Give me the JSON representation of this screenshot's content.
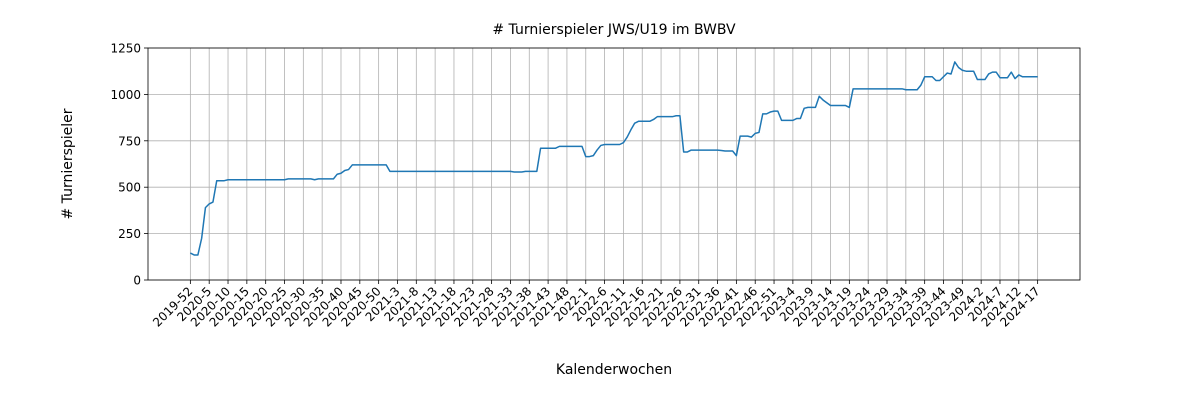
{
  "chart_data": {
    "type": "line",
    "title": "# Turnierspieler JWS/U19 im BWBV",
    "x_label": "Kalenderwochen",
    "y_label": "# Turnierspieler",
    "color": "#1f77b4",
    "grid": true,
    "ylim": [
      0,
      1250
    ],
    "yticks": [
      0,
      250,
      500,
      750,
      1000,
      1250
    ],
    "categories": [
      "2019-52",
      null,
      null,
      null,
      null,
      "2020-5",
      null,
      null,
      null,
      null,
      "2020-10",
      null,
      null,
      null,
      null,
      "2020-15",
      null,
      null,
      null,
      null,
      "2020-20",
      null,
      null,
      null,
      null,
      "2020-25",
      null,
      null,
      null,
      null,
      "2020-30",
      null,
      null,
      null,
      null,
      "2020-35",
      null,
      null,
      null,
      null,
      "2020-40",
      null,
      null,
      null,
      null,
      "2020-45",
      null,
      null,
      null,
      null,
      "2020-50",
      null,
      null,
      null,
      null,
      "2021-3",
      null,
      null,
      null,
      null,
      "2021-8",
      null,
      null,
      null,
      null,
      "2021-13",
      null,
      null,
      null,
      null,
      "2021-18",
      null,
      null,
      null,
      null,
      "2021-23",
      null,
      null,
      null,
      null,
      "2021-28",
      null,
      null,
      null,
      null,
      "2021-33",
      null,
      null,
      null,
      null,
      "2021-38",
      null,
      null,
      null,
      null,
      "2021-43",
      null,
      null,
      null,
      null,
      "2021-48",
      null,
      null,
      null,
      null,
      "2022-1",
      null,
      null,
      null,
      null,
      "2022-6",
      null,
      null,
      null,
      null,
      "2022-11",
      null,
      null,
      null,
      null,
      "2022-16",
      null,
      null,
      null,
      null,
      "2022-21",
      null,
      null,
      null,
      null,
      "2022-26",
      null,
      null,
      null,
      null,
      "2022-31",
      null,
      null,
      null,
      null,
      "2022-36",
      null,
      null,
      null,
      null,
      "2022-41",
      null,
      null,
      null,
      null,
      "2022-46",
      null,
      null,
      null,
      null,
      "2022-51",
      null,
      null,
      null,
      null,
      "2023-4",
      null,
      null,
      null,
      null,
      "2023-9",
      null,
      null,
      null,
      null,
      "2023-14",
      null,
      null,
      null,
      null,
      "2023-19",
      null,
      null,
      null,
      null,
      "2023-24",
      null,
      null,
      null,
      null,
      "2023-29",
      null,
      null,
      null,
      null,
      "2023-34",
      null,
      null,
      null,
      null,
      "2023-39",
      null,
      null,
      null,
      null,
      "2023-44",
      null,
      null,
      null,
      null,
      "2023-49",
      null,
      null,
      null,
      null,
      "2024-2",
      null,
      null,
      null,
      null,
      "2024-7",
      null,
      null,
      null,
      null,
      "2024-12",
      null,
      null,
      null,
      null,
      "2024-17"
    ],
    "values": [
      145,
      135,
      135,
      225,
      390,
      410,
      420,
      535,
      535,
      535,
      540,
      540,
      540,
      540,
      540,
      540,
      540,
      540,
      540,
      540,
      540,
      540,
      540,
      540,
      540,
      540,
      545,
      545,
      545,
      545,
      545,
      545,
      545,
      540,
      545,
      545,
      545,
      545,
      545,
      570,
      575,
      590,
      595,
      620,
      620,
      620,
      620,
      620,
      620,
      620,
      620,
      620,
      620,
      585,
      585,
      585,
      585,
      585,
      585,
      585,
      585,
      585,
      585,
      585,
      585,
      585,
      585,
      585,
      585,
      585,
      585,
      585,
      585,
      585,
      585,
      585,
      585,
      585,
      585,
      585,
      585,
      585,
      585,
      585,
      585,
      585,
      582,
      582,
      582,
      585,
      585,
      585,
      585,
      710,
      710,
      710,
      710,
      710,
      720,
      720,
      720,
      720,
      720,
      720,
      720,
      665,
      665,
      670,
      700,
      725,
      730,
      730,
      730,
      730,
      730,
      740,
      770,
      810,
      845,
      855,
      855,
      855,
      855,
      865,
      880,
      880,
      880,
      880,
      880,
      885,
      885,
      690,
      690,
      700,
      700,
      700,
      700,
      700,
      700,
      700,
      700,
      698,
      695,
      695,
      695,
      670,
      775,
      775,
      775,
      770,
      790,
      795,
      895,
      895,
      905,
      910,
      910,
      860,
      860,
      860,
      860,
      870,
      870,
      925,
      930,
      930,
      930,
      990,
      970,
      955,
      940,
      940,
      940,
      940,
      940,
      930,
      1030,
      1030,
      1030,
      1030,
      1030,
      1030,
      1030,
      1030,
      1030,
      1030,
      1030,
      1030,
      1030,
      1030,
      1025,
      1025,
      1025,
      1025,
      1050,
      1095,
      1095,
      1095,
      1075,
      1075,
      1095,
      1115,
      1110,
      1175,
      1145,
      1130,
      1125,
      1125,
      1125,
      1080,
      1080,
      1080,
      1110,
      1120,
      1120,
      1090,
      1090,
      1090,
      1120,
      1085,
      1105,
      1095,
      1095,
      1095,
      1095,
      1095
    ]
  }
}
